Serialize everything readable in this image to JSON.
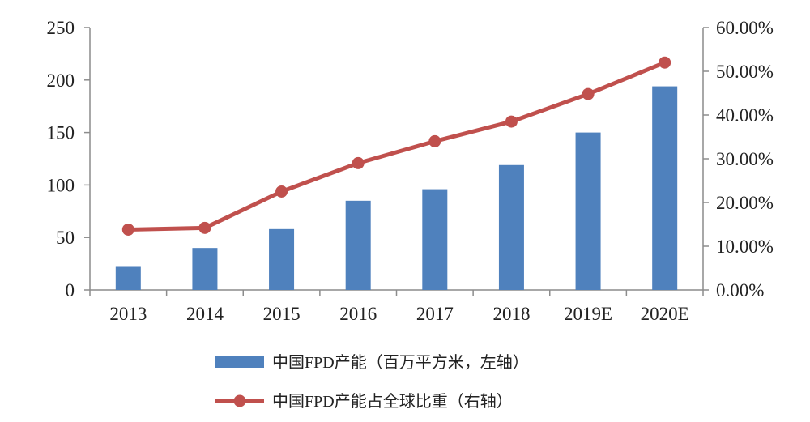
{
  "colors": {
    "bar": "#4f81bd",
    "line": "#c0504d",
    "axis": "#8c8c8c",
    "text": "#222222"
  },
  "chart_data": {
    "type": "bar",
    "title": "",
    "categories": [
      "2013",
      "2014",
      "2015",
      "2016",
      "2017",
      "2018",
      "2019E",
      "2020E"
    ],
    "grid": false,
    "legend_position": "bottom",
    "left_axis": {
      "ylim": [
        0,
        250
      ],
      "ticks": [
        "0",
        "50",
        "100",
        "150",
        "200",
        "250"
      ]
    },
    "right_axis": {
      "ylim": [
        0,
        0.6
      ],
      "ticks": [
        "0.00%",
        "10.00%",
        "20.00%",
        "30.00%",
        "40.00%",
        "50.00%",
        "60.00%"
      ]
    },
    "series": [
      {
        "name": "中国FPD产能（百万平方米，左轴）",
        "type": "bar",
        "axis": "left",
        "values": [
          22,
          40,
          58,
          85,
          96,
          119,
          150,
          194
        ]
      },
      {
        "name": "中国FPD产能占全球比重（右轴）",
        "type": "line",
        "axis": "right",
        "values": [
          0.138,
          0.142,
          0.225,
          0.29,
          0.34,
          0.385,
          0.448,
          0.52
        ]
      }
    ]
  }
}
